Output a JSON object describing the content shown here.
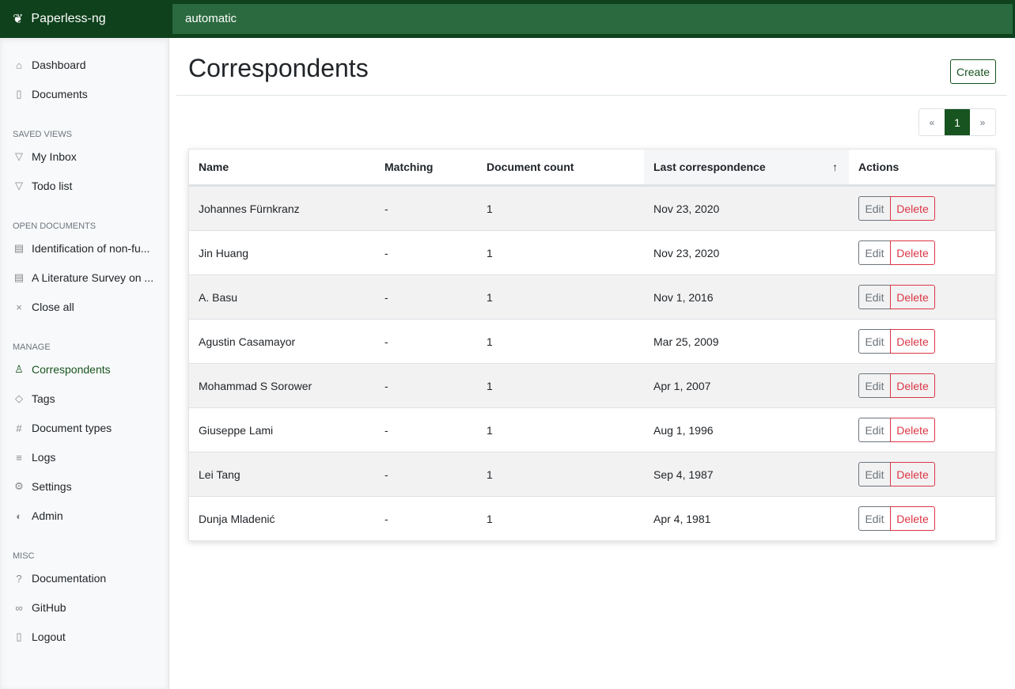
{
  "app": {
    "name": "Paperless-ng",
    "search_value": "automatic"
  },
  "sidebar": {
    "items_top": [
      {
        "label": "Dashboard",
        "icon": "house-icon"
      },
      {
        "label": "Documents",
        "icon": "files-icon"
      }
    ],
    "saved_views_heading": "Saved views",
    "saved_views": [
      {
        "label": "My Inbox",
        "icon": "funnel-icon"
      },
      {
        "label": "Todo list",
        "icon": "funnel-icon"
      }
    ],
    "open_docs_heading": "Open documents",
    "open_docs": [
      {
        "label": "Identification of non-fu...",
        "icon": "file-text-icon"
      },
      {
        "label": "A Literature Survey on ...",
        "icon": "file-text-icon"
      },
      {
        "label": "Close all",
        "icon": "x-icon"
      }
    ],
    "manage_heading": "Manage",
    "manage": [
      {
        "label": "Correspondents",
        "icon": "person-icon",
        "active": true
      },
      {
        "label": "Tags",
        "icon": "tags-icon"
      },
      {
        "label": "Document types",
        "icon": "hash-icon"
      },
      {
        "label": "Logs",
        "icon": "list-icon"
      },
      {
        "label": "Settings",
        "icon": "gear-icon"
      },
      {
        "label": "Admin",
        "icon": "toggles-icon"
      }
    ],
    "misc_heading": "Misc",
    "misc": [
      {
        "label": "Documentation",
        "icon": "question-circle-icon"
      },
      {
        "label": "GitHub",
        "icon": "link-icon"
      },
      {
        "label": "Logout",
        "icon": "door-icon"
      }
    ]
  },
  "page": {
    "title": "Correspondents",
    "create_label": "Create"
  },
  "pager": {
    "prev": "«",
    "current": "1",
    "next": "»"
  },
  "table": {
    "headers": [
      "Name",
      "Matching",
      "Document count",
      "Last correspondence",
      "Actions"
    ],
    "sort_indicator": "↑",
    "edit_label": "Edit",
    "delete_label": "Delete",
    "rows": [
      [
        "Johannes Fürnkranz",
        "-",
        "1",
        "Nov 23, 2020"
      ],
      [
        "Jin Huang",
        "-",
        "1",
        "Nov 23, 2020"
      ],
      [
        "A. Basu",
        "-",
        "1",
        "Nov 1, 2016"
      ],
      [
        "Agustin Casamayor",
        "-",
        "1",
        "Mar 25, 2009"
      ],
      [
        "Mohammad S Sorower",
        "-",
        "1",
        "Apr 1, 2007"
      ],
      [
        "Giuseppe Lami",
        "-",
        "1",
        "Aug 1, 1996"
      ],
      [
        "Lei Tang",
        "-",
        "1",
        "Sep 4, 1987"
      ],
      [
        "Dunja Mladenić",
        "-",
        "1",
        "Apr 4, 1981"
      ]
    ]
  }
}
